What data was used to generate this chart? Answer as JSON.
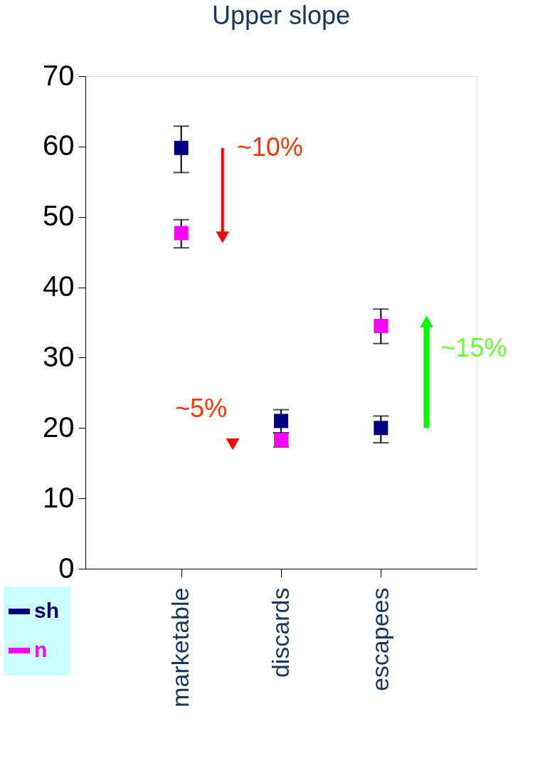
{
  "chart_data": {
    "type": "scatter",
    "title": "Upper slope",
    "categories": [
      "marketable",
      "discards",
      "escapees"
    ],
    "series": [
      {
        "name": "sh",
        "color": "#000080",
        "values": [
          59.8,
          21.0,
          20.0
        ],
        "errors": [
          [
            56.3,
            62.9
          ],
          [
            19.3,
            22.6
          ],
          [
            17.9,
            21.7
          ]
        ]
      },
      {
        "name": "n",
        "color": "#ff00ff",
        "values": [
          47.7,
          18.3,
          34.5
        ],
        "errors": [
          [
            45.6,
            49.6
          ],
          [
            17.3,
            19.3
          ],
          [
            32.0,
            36.9
          ]
        ]
      }
    ],
    "marker": "square",
    "ylim": [
      0,
      70
    ],
    "yticks": [
      0,
      10,
      20,
      30,
      40,
      50,
      60,
      70
    ],
    "grid": false,
    "legend": "bottom left",
    "annotations": [
      "~10%",
      "~5%",
      "~15%"
    ]
  }
}
